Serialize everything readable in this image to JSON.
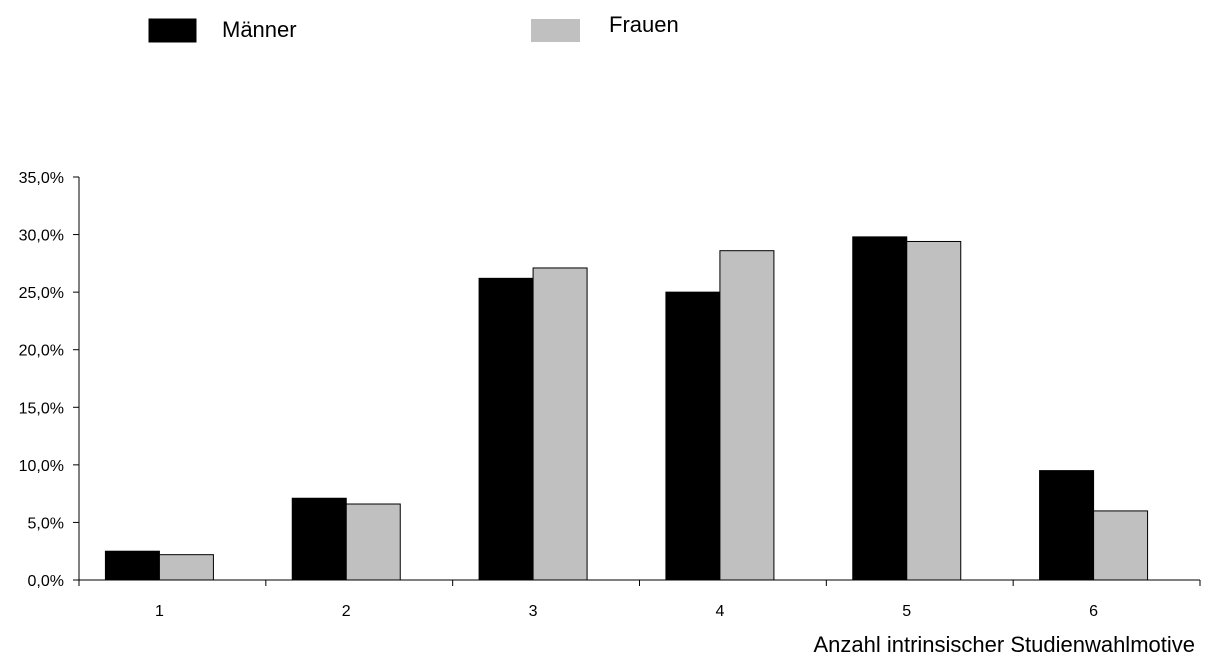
{
  "chart_data": {
    "type": "bar",
    "xlabel": "Anzahl intrinsischer Studienwahlmotive",
    "ylabel": "",
    "categories": [
      "1",
      "2",
      "3",
      "4",
      "5",
      "6"
    ],
    "series": [
      {
        "name": "Männer",
        "color": "#000000",
        "values": [
          2.5,
          7.1,
          26.2,
          25.0,
          29.8,
          9.5
        ]
      },
      {
        "name": "Frauen",
        "color": "#c0c0c0",
        "values": [
          2.2,
          6.6,
          27.1,
          28.6,
          29.4,
          6.0
        ]
      }
    ],
    "ylim": [
      0,
      35
    ],
    "yticks": [
      0,
      5,
      10,
      15,
      20,
      25,
      30,
      35
    ],
    "ytick_labels": [
      "0,0%",
      "5,0%",
      "10,0%",
      "15,0%",
      "20,0%",
      "25,0%",
      "30,0%",
      "35,0%"
    ],
    "grid": false,
    "legend_position": "top-left"
  }
}
